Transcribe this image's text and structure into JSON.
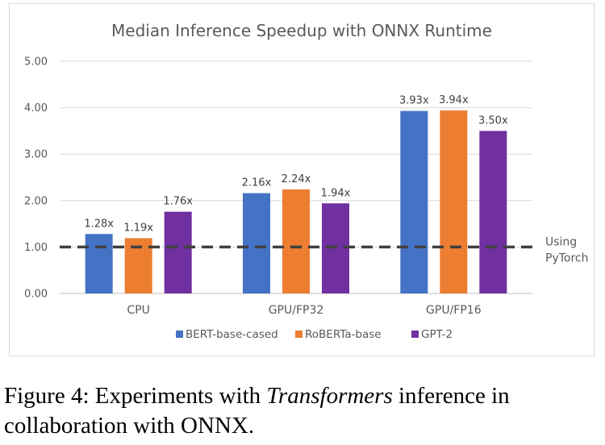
{
  "chart_data": {
    "type": "bar",
    "title": "Median Inference Speedup with ONNX Runtime",
    "categories": [
      "CPU",
      "GPU/FP32",
      "GPU/FP16"
    ],
    "series": [
      {
        "name": "BERT-base-cased",
        "color": "#4472c4",
        "values": [
          1.28,
          2.16,
          3.93
        ],
        "labels": [
          "1.28x",
          "2.16x",
          "3.93x"
        ]
      },
      {
        "name": "RoBERTa-base",
        "color": "#ed7d31",
        "values": [
          1.19,
          2.24,
          3.94
        ],
        "labels": [
          "1.19x",
          "2.24x",
          "3.94x"
        ]
      },
      {
        "name": "GPT-2",
        "color": "#7030a0",
        "values": [
          1.76,
          1.94,
          3.5
        ],
        "labels": [
          "1.76x",
          "1.94x",
          "3.50x"
        ]
      }
    ],
    "ylim": [
      0,
      5
    ],
    "yticks": [
      "0.00",
      "1.00",
      "2.00",
      "3.00",
      "4.00",
      "5.00"
    ],
    "grid": true,
    "legend": "bottom",
    "reference_line": {
      "value": 1.0,
      "label_lines": [
        "Using",
        "PyTorch"
      ],
      "style": "dashed",
      "color": "#404040"
    }
  },
  "caption": {
    "prefix": "Figure 4: Experiments with ",
    "emphasis": "Transformers",
    "suffix": " inference in collaboration with ONNX."
  }
}
